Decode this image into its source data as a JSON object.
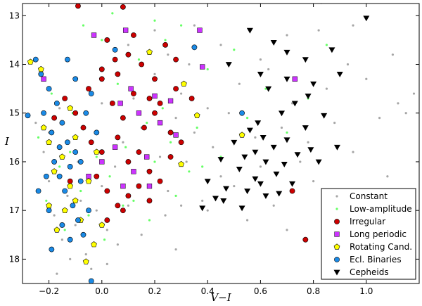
{
  "chart_data": {
    "type": "scatter",
    "xlabel": "V−I",
    "ylabel": "I",
    "xlim": [
      -0.3,
      1.2
    ],
    "ylim": [
      12.75,
      18.5
    ],
    "y_inverted": true,
    "x_ticks": [
      -0.2,
      0.0,
      0.2,
      0.4,
      0.6,
      0.8,
      1.0
    ],
    "x_tick_labels": [
      "−0.2",
      "0.0",
      "0.2",
      "0.4",
      "0.6",
      "0.8",
      "1.0"
    ],
    "y_ticks": [
      13,
      14,
      15,
      16,
      17,
      18
    ],
    "y_tick_labels": [
      "13",
      "14",
      "15",
      "16",
      "17",
      "18"
    ],
    "grid": false,
    "legend_position": "bottom-right",
    "series": [
      {
        "name": "Constant",
        "marker": "dot",
        "color": "#a6a6a6",
        "points": [
          [
            -0.25,
            15.2
          ],
          [
            -0.22,
            15.8
          ],
          [
            -0.2,
            16.4
          ],
          [
            -0.18,
            17.1
          ],
          [
            -0.15,
            17.6
          ],
          [
            -0.12,
            18.0
          ],
          [
            -0.1,
            17.3
          ],
          [
            -0.08,
            16.8
          ],
          [
            -0.06,
            17.9
          ],
          [
            -0.04,
            18.2
          ],
          [
            -0.02,
            17.0
          ],
          [
            0.0,
            16.5
          ],
          [
            0.02,
            17.4
          ],
          [
            0.05,
            16.1
          ],
          [
            0.08,
            15.6
          ],
          [
            0.1,
            16.9
          ],
          [
            0.12,
            14.7
          ],
          [
            0.15,
            15.3
          ],
          [
            0.18,
            16.2
          ],
          [
            0.2,
            14.2
          ],
          [
            0.22,
            15.9
          ],
          [
            0.25,
            16.6
          ],
          [
            0.28,
            15.1
          ],
          [
            0.3,
            14.6
          ],
          [
            0.32,
            16.0
          ],
          [
            0.35,
            15.4
          ],
          [
            0.38,
            16.8
          ],
          [
            0.4,
            14.9
          ],
          [
            0.42,
            15.7
          ],
          [
            0.45,
            16.3
          ],
          [
            0.48,
            15.0
          ],
          [
            0.5,
            16.5
          ],
          [
            0.52,
            14.4
          ],
          [
            0.55,
            17.2
          ],
          [
            0.58,
            15.5
          ],
          [
            0.6,
            16.1
          ],
          [
            0.63,
            14.1
          ],
          [
            0.65,
            16.9
          ],
          [
            0.68,
            15.3
          ],
          [
            0.7,
            17.4
          ],
          [
            0.72,
            14.8
          ],
          [
            0.75,
            16.0
          ],
          [
            0.78,
            15.6
          ],
          [
            0.8,
            16.4
          ],
          [
            0.82,
            13.3
          ],
          [
            0.85,
            14.5
          ],
          [
            0.88,
            15.2
          ],
          [
            0.9,
            16.7
          ],
          [
            0.93,
            14.0
          ],
          [
            0.95,
            15.8
          ],
          [
            1.0,
            14.3
          ],
          [
            1.05,
            15.1
          ],
          [
            1.08,
            16.3
          ],
          [
            1.12,
            14.8
          ],
          [
            1.15,
            15.0
          ],
          [
            1.18,
            14.6
          ],
          [
            0.28,
            17.8
          ],
          [
            0.35,
            13.2
          ],
          [
            0.45,
            13.6
          ],
          [
            0.6,
            13.9
          ],
          [
            0.7,
            13.4
          ],
          [
            0.95,
            13.2
          ],
          [
            1.1,
            13.8
          ],
          [
            -0.17,
            18.3
          ],
          [
            0.02,
            18.1
          ],
          [
            -0.09,
            16.0
          ],
          [
            -0.13,
            16.7
          ],
          [
            0.06,
            17.7
          ],
          [
            0.15,
            17.5
          ],
          [
            0.24,
            17.1
          ],
          [
            0.3,
            16.9
          ],
          [
            0.4,
            17.0
          ],
          [
            -0.2,
            15.4
          ],
          [
            -0.16,
            14.9
          ],
          [
            0.0,
            14.8
          ],
          [
            0.05,
            13.9
          ],
          [
            0.1,
            13.6
          ],
          [
            0.2,
            13.3
          ],
          [
            0.25,
            13.8
          ],
          [
            0.33,
            14.0
          ]
        ]
      },
      {
        "name": "Low-amplitude",
        "marker": "dot",
        "color": "#66ff66",
        "points": [
          [
            -0.24,
            15.5
          ],
          [
            -0.21,
            16.8
          ],
          [
            -0.19,
            14.6
          ],
          [
            -0.16,
            16.1
          ],
          [
            -0.14,
            17.4
          ],
          [
            -0.11,
            15.0
          ],
          [
            -0.08,
            16.6
          ],
          [
            -0.05,
            17.1
          ],
          [
            -0.02,
            15.9
          ],
          [
            0.0,
            13.5
          ],
          [
            0.03,
            16.3
          ],
          [
            0.06,
            14.4
          ],
          [
            0.09,
            15.7
          ],
          [
            0.12,
            16.8
          ],
          [
            0.14,
            13.9
          ],
          [
            0.17,
            15.2
          ],
          [
            0.2,
            16.0
          ],
          [
            0.23,
            14.9
          ],
          [
            0.26,
            15.6
          ],
          [
            0.3,
            13.2
          ],
          [
            0.33,
            16.2
          ],
          [
            0.36,
            15.3
          ],
          [
            0.4,
            14.1
          ],
          [
            0.45,
            15.9
          ],
          [
            0.5,
            13.7
          ],
          [
            0.55,
            15.1
          ],
          [
            0.62,
            14.5
          ],
          [
            0.7,
            15.4
          ],
          [
            0.78,
            14.7
          ],
          [
            0.85,
            13.6
          ],
          [
            -0.07,
            13.2
          ],
          [
            0.04,
            12.95
          ],
          [
            0.2,
            13.1
          ],
          [
            0.24,
            13.5
          ],
          [
            -0.12,
            15.8
          ],
          [
            0.01,
            17.6
          ],
          [
            0.08,
            16.9
          ],
          [
            0.18,
            17.2
          ],
          [
            0.28,
            16.7
          ],
          [
            0.38,
            16.1
          ]
        ]
      },
      {
        "name": "Irregular",
        "marker": "circle",
        "color": "#cc0000",
        "points": [
          [
            -0.09,
            12.8
          ],
          [
            0.08,
            12.82
          ],
          [
            0.02,
            13.5
          ],
          [
            0.05,
            13.9
          ],
          [
            0.0,
            14.1
          ],
          [
            0.1,
            13.8
          ],
          [
            0.15,
            14.0
          ],
          [
            0.2,
            14.3
          ],
          [
            0.24,
            13.6
          ],
          [
            0.28,
            13.9
          ],
          [
            -0.14,
            14.7
          ],
          [
            -0.1,
            15.0
          ],
          [
            -0.05,
            14.5
          ],
          [
            0.04,
            14.8
          ],
          [
            0.08,
            15.1
          ],
          [
            0.12,
            14.6
          ],
          [
            0.16,
            15.3
          ],
          [
            0.2,
            15.0
          ],
          [
            0.22,
            14.8
          ],
          [
            0.26,
            15.4
          ],
          [
            0.3,
            15.6
          ],
          [
            0.06,
            15.5
          ],
          [
            0.0,
            15.8
          ],
          [
            -0.04,
            15.6
          ],
          [
            0.1,
            16.0
          ],
          [
            0.14,
            15.8
          ],
          [
            0.18,
            16.2
          ],
          [
            0.22,
            16.4
          ],
          [
            0.26,
            15.9
          ],
          [
            -0.02,
            16.3
          ],
          [
            0.02,
            16.6
          ],
          [
            0.06,
            16.9
          ],
          [
            0.1,
            16.7
          ],
          [
            0.14,
            16.5
          ],
          [
            0.18,
            16.8
          ],
          [
            0.08,
            17.0
          ],
          [
            0.02,
            17.2
          ],
          [
            0.0,
            14.3
          ],
          [
            -0.07,
            15.3
          ],
          [
            0.34,
            14.7
          ],
          [
            0.72,
            16.6
          ],
          [
            0.77,
            17.6
          ],
          [
            0.12,
            13.4
          ],
          [
            -0.12,
            16.4
          ],
          [
            -0.18,
            15.1
          ],
          [
            0.06,
            14.2
          ],
          [
            0.18,
            14.7
          ],
          [
            0.28,
            14.5
          ]
        ]
      },
      {
        "name": "Long periodic",
        "marker": "square",
        "color": "#cc33ff",
        "points": [
          [
            0.09,
            13.3
          ],
          [
            -0.03,
            13.4
          ],
          [
            0.37,
            13.3
          ],
          [
            0.38,
            14.05
          ],
          [
            0.11,
            14.5
          ],
          [
            0.2,
            14.65
          ],
          [
            0.26,
            14.75
          ],
          [
            0.07,
            14.8
          ],
          [
            0.14,
            15.0
          ],
          [
            0.22,
            15.2
          ],
          [
            0.28,
            15.45
          ],
          [
            0.05,
            15.7
          ],
          [
            0.17,
            15.9
          ],
          [
            0.12,
            16.2
          ],
          [
            0.08,
            16.5
          ],
          [
            0.18,
            16.5
          ],
          [
            0.73,
            14.3
          ],
          [
            -0.22,
            14.3
          ],
          [
            -0.05,
            16.3
          ],
          [
            0.0,
            16.0
          ]
        ]
      },
      {
        "name": "Rotating Cand.",
        "marker": "pentagon",
        "color": "#ffff00",
        "points": [
          [
            -0.27,
            13.95
          ],
          [
            -0.23,
            14.1
          ],
          [
            0.18,
            13.75
          ],
          [
            0.31,
            14.4
          ],
          [
            0.36,
            15.05
          ],
          [
            0.53,
            15.45
          ],
          [
            0.3,
            16.05
          ],
          [
            -0.22,
            15.3
          ],
          [
            -0.2,
            15.6
          ],
          [
            -0.18,
            16.2
          ],
          [
            -0.15,
            15.9
          ],
          [
            -0.12,
            16.5
          ],
          [
            -0.1,
            16.8
          ],
          [
            -0.08,
            17.2
          ],
          [
            -0.14,
            17.0
          ],
          [
            -0.05,
            16.4
          ],
          [
            -0.2,
            16.9
          ],
          [
            -0.17,
            17.4
          ],
          [
            -0.03,
            17.7
          ],
          [
            0.0,
            17.3
          ],
          [
            -0.1,
            15.5
          ],
          [
            -0.06,
            18.05
          ],
          [
            -0.12,
            14.9
          ],
          [
            -0.02,
            15.8
          ]
        ]
      },
      {
        "name": "Ecl. Binaries",
        "marker": "circle",
        "color": "#1a8ae6",
        "points": [
          [
            -0.25,
            13.9
          ],
          [
            -0.23,
            14.2
          ],
          [
            -0.2,
            14.5
          ],
          [
            -0.22,
            15.0
          ],
          [
            -0.19,
            15.4
          ],
          [
            -0.17,
            14.8
          ],
          [
            -0.15,
            15.2
          ],
          [
            -0.13,
            15.6
          ],
          [
            -0.18,
            16.0
          ],
          [
            -0.16,
            16.3
          ],
          [
            -0.14,
            16.6
          ],
          [
            -0.12,
            16.1
          ],
          [
            -0.1,
            15.8
          ],
          [
            -0.08,
            16.4
          ],
          [
            -0.11,
            16.9
          ],
          [
            -0.09,
            17.2
          ],
          [
            -0.07,
            17.5
          ],
          [
            -0.05,
            17.0
          ],
          [
            -0.2,
            17.0
          ],
          [
            -0.24,
            16.6
          ],
          [
            -0.28,
            15.05
          ],
          [
            -0.04,
            14.6
          ],
          [
            -0.02,
            15.4
          ],
          [
            -0.06,
            15.0
          ],
          [
            -0.19,
            17.8
          ],
          [
            -0.15,
            17.3
          ],
          [
            -0.1,
            14.3
          ],
          [
            -0.04,
            18.45
          ],
          [
            0.35,
            13.65
          ],
          [
            0.53,
            15.0
          ],
          [
            0.05,
            13.7
          ],
          [
            -0.13,
            13.9
          ],
          [
            -0.21,
            16.3
          ],
          [
            -0.16,
            15.7
          ],
          [
            -0.08,
            16.0
          ],
          [
            -0.12,
            17.6
          ]
        ]
      },
      {
        "name": "Cepheids",
        "marker": "triangle-down",
        "color": "#000000",
        "points": [
          [
            0.83,
            12.7
          ],
          [
            1.0,
            13.05
          ],
          [
            0.56,
            13.3
          ],
          [
            0.65,
            13.55
          ],
          [
            0.7,
            13.75
          ],
          [
            0.77,
            13.9
          ],
          [
            0.87,
            13.7
          ],
          [
            0.48,
            14.0
          ],
          [
            0.6,
            14.2
          ],
          [
            0.7,
            14.3
          ],
          [
            0.8,
            14.4
          ],
          [
            0.9,
            14.2
          ],
          [
            0.63,
            14.5
          ],
          [
            0.78,
            14.65
          ],
          [
            0.73,
            14.8
          ],
          [
            0.84,
            15.05
          ],
          [
            0.59,
            15.2
          ],
          [
            0.68,
            15.0
          ],
          [
            0.77,
            15.3
          ],
          [
            0.61,
            15.5
          ],
          [
            0.7,
            15.55
          ],
          [
            0.65,
            15.7
          ],
          [
            0.58,
            15.8
          ],
          [
            0.74,
            15.85
          ],
          [
            0.54,
            15.9
          ],
          [
            0.62,
            16.0
          ],
          [
            0.69,
            16.05
          ],
          [
            0.79,
            15.75
          ],
          [
            0.52,
            16.15
          ],
          [
            0.58,
            16.35
          ],
          [
            0.66,
            16.25
          ],
          [
            0.72,
            16.45
          ],
          [
            0.47,
            16.55
          ],
          [
            0.55,
            16.6
          ],
          [
            0.62,
            16.7
          ],
          [
            0.46,
            16.8
          ],
          [
            0.53,
            16.95
          ],
          [
            0.4,
            16.4
          ],
          [
            0.43,
            16.75
          ],
          [
            0.38,
            16.95
          ],
          [
            0.6,
            16.45
          ],
          [
            0.67,
            16.65
          ],
          [
            0.89,
            15.7
          ],
          [
            0.82,
            16.0
          ],
          [
            0.92,
            16.9
          ],
          [
            0.5,
            15.6
          ],
          [
            0.56,
            15.35
          ],
          [
            0.45,
            15.95
          ]
        ]
      }
    ]
  }
}
